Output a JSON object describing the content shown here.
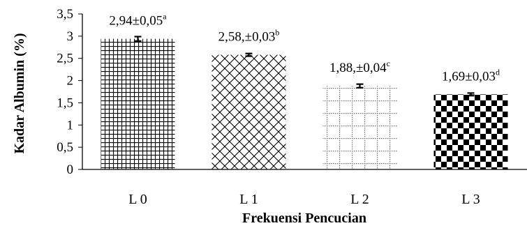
{
  "chart_data": {
    "type": "bar",
    "title": "",
    "xlabel": "Frekuensi Pencucian",
    "ylabel": "Kadar Albumin  (%)",
    "ylim": [
      0,
      3.5
    ],
    "ytick_values": [
      0,
      0.5,
      1,
      1.5,
      2,
      2.5,
      3,
      3.5
    ],
    "ytick_labels": [
      "0",
      "0,5",
      "1",
      "1,5",
      "2",
      "2,5",
      "3",
      "3,5"
    ],
    "categories": [
      "L 0",
      "L 1",
      "L 2",
      "L 3"
    ],
    "values": [
      2.94,
      2.58,
      1.88,
      1.69
    ],
    "errors": [
      0.05,
      0.03,
      0.04,
      0.03
    ],
    "data_labels": [
      "2,94±0,05",
      "2,58,±0,03",
      "1,88,±0,04",
      "1,69±0,03"
    ],
    "superscripts": [
      "a",
      "b",
      "c",
      "d"
    ],
    "patterns": [
      "grid",
      "diagonal-cross",
      "dotted-grid",
      "checker"
    ],
    "bar_color": "#000000",
    "grid": false,
    "legend": "none"
  }
}
